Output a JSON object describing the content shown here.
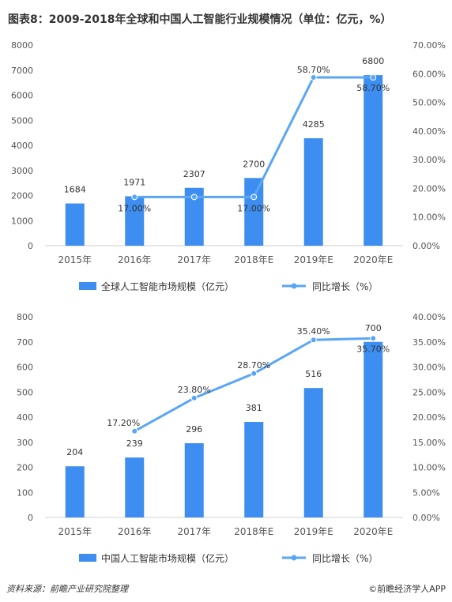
{
  "title": "图表8：2009-2018年全球和中国人工智能行业规模情况（单位：亿元，%）",
  "footer": "资料来源：前瞻产业研究院整理",
  "brand": "©前瞻经济学人APP",
  "colors": {
    "bar": "#3d8ef0",
    "line": "#5aa6f5",
    "axis": "#d0d0d0",
    "tick": "#555555"
  },
  "chart_data": [
    {
      "type": "bar+line",
      "categories": [
        "2015年",
        "2016年",
        "2017年",
        "2018年E",
        "2019年E",
        "2020年E"
      ],
      "series": [
        {
          "name": "全球人工智能市场规模（亿元）",
          "type": "bar",
          "axis": "left",
          "values": [
            1684,
            1971,
            2307,
            2700,
            4285,
            6800
          ],
          "labels": [
            "1684",
            "1971",
            "2307",
            "2700",
            "4285",
            "6800"
          ]
        },
        {
          "name": "同比增长（%）",
          "type": "line",
          "axis": "right",
          "values": [
            null,
            17.0,
            17.0,
            17.0,
            58.7,
            58.7
          ],
          "labels": [
            "",
            "17.00%",
            "",
            "17.00%",
            "58.70%",
            "58.70%"
          ]
        }
      ],
      "ylim": [
        0,
        8000
      ],
      "yticks": [
        "0",
        "1000",
        "2000",
        "3000",
        "4000",
        "5000",
        "6000",
        "7000",
        "8000"
      ],
      "y2lim": [
        0,
        70
      ],
      "y2ticks": [
        "0.00%",
        "10.00%",
        "20.00%",
        "30.00%",
        "40.00%",
        "50.00%",
        "60.00%",
        "70.00%"
      ],
      "legend": "bottom"
    },
    {
      "type": "bar+line",
      "categories": [
        "2015年",
        "2016年",
        "2017年",
        "2018年E",
        "2019年E",
        "2020年E"
      ],
      "series": [
        {
          "name": "中国人工智能市场规模（亿元）",
          "type": "bar",
          "axis": "left",
          "values": [
            204,
            239,
            296,
            381,
            516,
            700
          ],
          "labels": [
            "204",
            "239",
            "296",
            "381",
            "516",
            "700"
          ]
        },
        {
          "name": "同比增长（%）",
          "type": "line",
          "axis": "right",
          "values": [
            null,
            17.2,
            23.8,
            28.7,
            35.4,
            35.7
          ],
          "labels": [
            "",
            "17.20%",
            "23.80%",
            "28.70%",
            "35.40%",
            "35.70%"
          ]
        }
      ],
      "ylim": [
        0,
        800
      ],
      "yticks": [
        "0",
        "100",
        "200",
        "300",
        "400",
        "500",
        "600",
        "700",
        "800"
      ],
      "y2lim": [
        0,
        40
      ],
      "y2ticks": [
        "0.00%",
        "5.00%",
        "10.00%",
        "15.00%",
        "20.00%",
        "25.00%",
        "30.00%",
        "35.00%",
        "40.00%"
      ],
      "legend": "bottom"
    }
  ]
}
